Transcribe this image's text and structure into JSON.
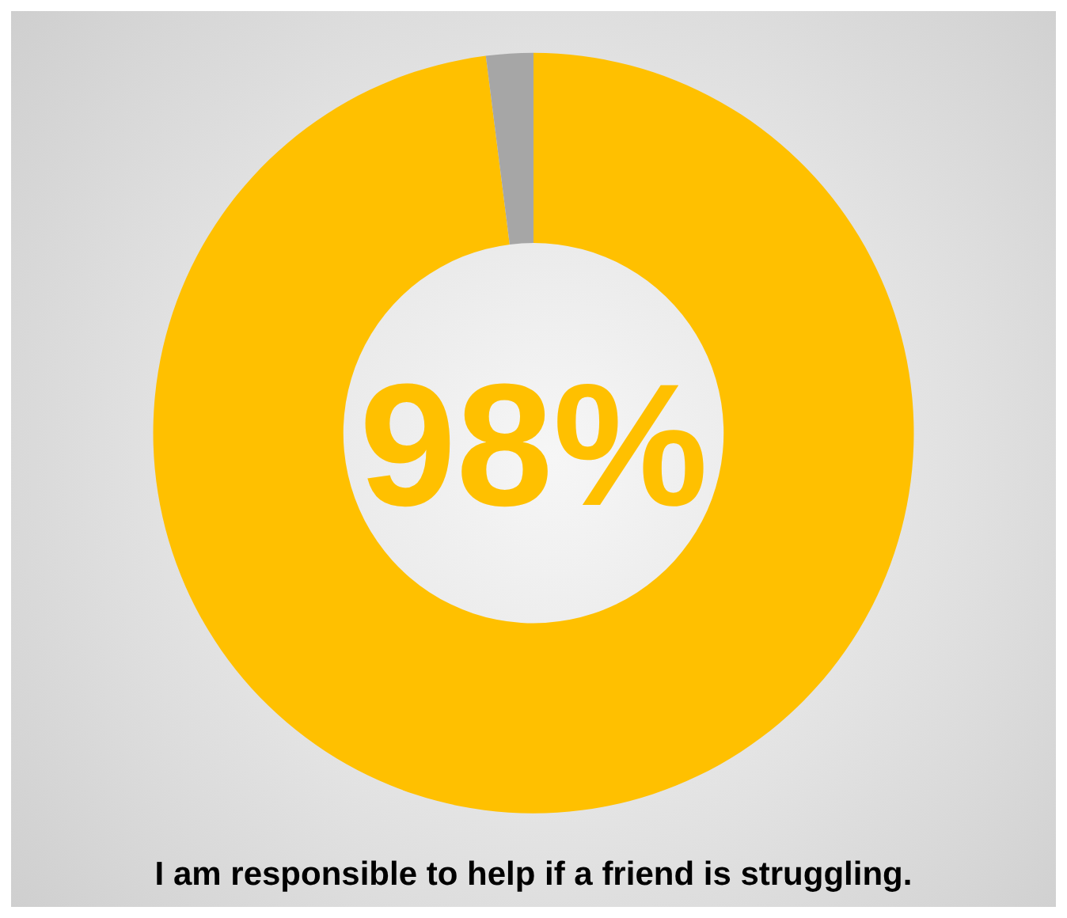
{
  "chart_data": {
    "type": "donut",
    "title": "I am responsible to help if a friend is struggling.",
    "categories": [
      null,
      null
    ],
    "values": [
      98,
      2
    ],
    "colors": [
      "#ffc000",
      "#a6a6a6"
    ],
    "annotations": [
      "98%"
    ]
  }
}
